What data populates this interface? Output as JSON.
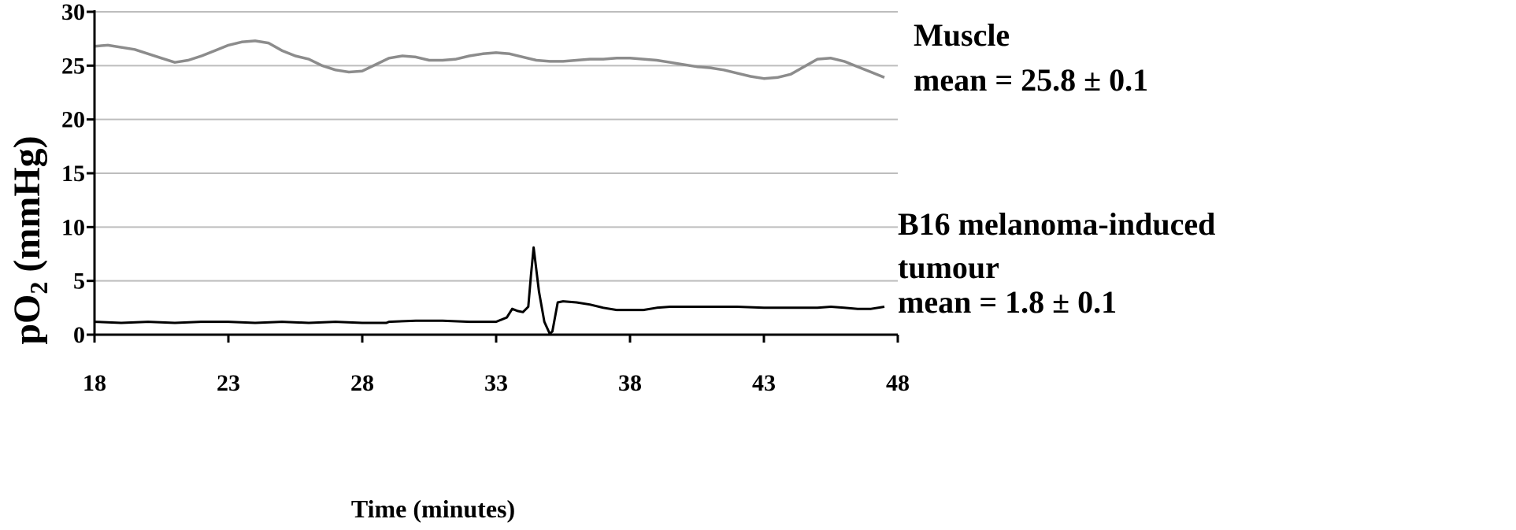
{
  "chart_data": {
    "type": "line",
    "xlabel": "Time (minutes)",
    "ylabel_parts": {
      "main": "pO",
      "sub": "2",
      "unit": " (mmHg)"
    },
    "xlim": [
      18,
      48
    ],
    "ylim": [
      0,
      30
    ],
    "xticks": [
      18,
      23,
      28,
      33,
      38,
      43,
      48
    ],
    "yticks": [
      0,
      5,
      10,
      15,
      20,
      25,
      30
    ],
    "grid": true,
    "colors": {
      "muscle": "#8c8c8c",
      "tumour": "#000000",
      "grid": "#bdbdbd"
    },
    "series": [
      {
        "key": "muscle",
        "x": [
          18,
          18.5,
          19.5,
          20,
          20.5,
          21,
          21.5,
          22,
          22.5,
          23,
          23.5,
          24,
          24.5,
          25,
          25.5,
          26,
          26.5,
          27,
          27.5,
          28,
          28.5,
          29,
          29.5,
          30,
          30.5,
          31,
          31.5,
          32,
          32.5,
          33,
          33.5,
          34,
          34.5,
          35,
          35.5,
          36,
          36.5,
          37,
          37.5,
          38,
          38.5,
          39,
          39.5,
          40,
          40.5,
          41,
          41.5,
          42,
          42.5,
          43,
          43.5,
          44,
          44.5,
          45,
          45.5,
          46,
          46.5,
          47,
          47.5
        ],
        "y": [
          26.8,
          26.9,
          26.5,
          26.1,
          25.7,
          25.3,
          25.5,
          25.9,
          26.4,
          26.9,
          27.2,
          27.3,
          27.1,
          26.4,
          25.9,
          25.6,
          25.0,
          24.6,
          24.4,
          24.5,
          25.1,
          25.7,
          25.9,
          25.8,
          25.5,
          25.5,
          25.6,
          25.9,
          26.1,
          26.2,
          26.1,
          25.8,
          25.5,
          25.4,
          25.4,
          25.5,
          25.6,
          25.6,
          25.7,
          25.7,
          25.6,
          25.5,
          25.3,
          25.1,
          24.9,
          24.8,
          24.6,
          24.3,
          24.0,
          23.8,
          23.9,
          24.2,
          24.9,
          25.6,
          25.7,
          25.4,
          24.9,
          24.4,
          23.9
        ]
      },
      {
        "key": "tumour",
        "x": [
          18,
          19,
          20,
          21,
          22,
          23,
          24,
          25,
          26,
          27,
          28,
          28.9,
          29,
          30,
          31,
          32,
          33,
          33.4,
          33.6,
          33.8,
          34,
          34.2,
          34.3,
          34.4,
          34.6,
          34.8,
          35.0,
          35.1,
          35.3,
          35.5,
          36,
          36.5,
          37,
          37.5,
          38,
          38.5,
          39,
          39.5,
          40,
          41,
          42,
          43,
          44,
          45,
          45.5,
          46,
          46.5,
          47,
          47.5
        ],
        "y": [
          1.2,
          1.1,
          1.2,
          1.1,
          1.2,
          1.2,
          1.1,
          1.2,
          1.1,
          1.2,
          1.1,
          1.1,
          1.2,
          1.3,
          1.3,
          1.2,
          1.2,
          1.6,
          2.4,
          2.2,
          2.1,
          2.6,
          5.5,
          8.1,
          4.0,
          1.2,
          0.1,
          0.3,
          3.0,
          3.1,
          3.0,
          2.8,
          2.5,
          2.3,
          2.3,
          2.3,
          2.5,
          2.6,
          2.6,
          2.6,
          2.6,
          2.5,
          2.5,
          2.5,
          2.6,
          2.5,
          2.4,
          2.4,
          2.6
        ]
      }
    ],
    "annotations": {
      "muscle_title": "Muscle",
      "muscle_mean": "mean = 25.8 ± 0.1",
      "tumour_title_1": "B16 melanoma-induced",
      "tumour_title_2": "tumour",
      "tumour_mean": "mean = 1.8 ± 0.1"
    }
  }
}
